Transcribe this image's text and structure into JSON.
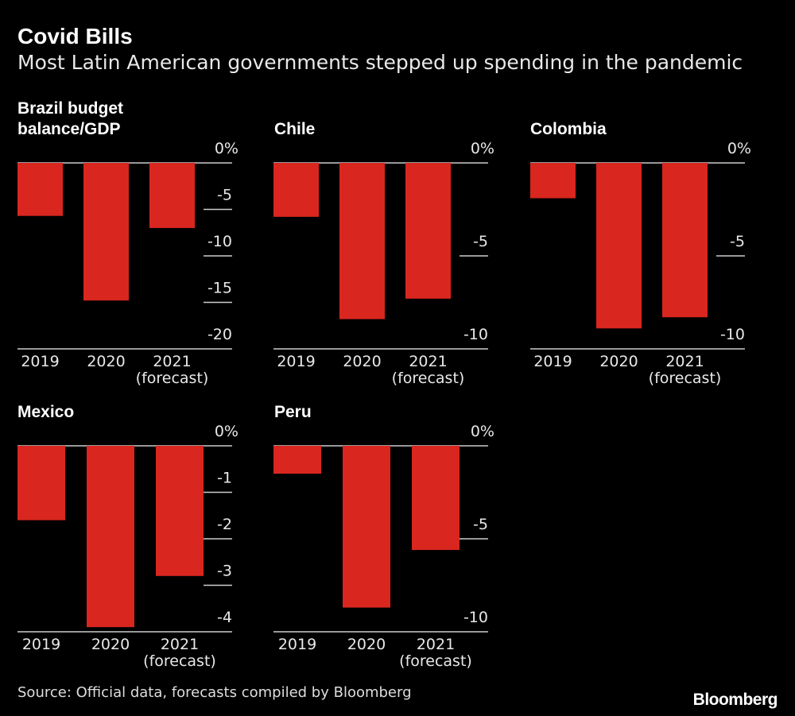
{
  "header": {
    "title": "Covid Bills",
    "subtitle": "Most Latin American governments stepped up spending in the pandemic"
  },
  "footer": {
    "source": "Source: Official data, forecasts compiled by Bloomberg",
    "logo": "Bloomberg"
  },
  "colors": {
    "bar": "#d9261f",
    "background": "#000000",
    "text": "#e8e8e8",
    "axis": "#cccccc"
  },
  "chart_data": [
    {
      "type": "bar",
      "title_lines": [
        "Brazil budget",
        "balance/GDP"
      ],
      "categories": [
        "2019",
        "2020",
        "2021"
      ],
      "category_sublabels": [
        "",
        "",
        "(forecast)"
      ],
      "values": [
        -5.7,
        -14.8,
        -7.0
      ],
      "ylim": [
        -20,
        0
      ],
      "ticks": [
        0,
        -5,
        -10,
        -15,
        -20
      ],
      "tick_labels": [
        "0%",
        "-5",
        "-10",
        "-15",
        "-20"
      ],
      "unit": "%"
    },
    {
      "type": "bar",
      "title_lines": [
        "Chile"
      ],
      "categories": [
        "2019",
        "2020",
        "2021"
      ],
      "category_sublabels": [
        "",
        "",
        "(forecast)"
      ],
      "values": [
        -2.9,
        -8.4,
        -7.3
      ],
      "ylim": [
        -10,
        0
      ],
      "ticks": [
        0,
        -5,
        -10
      ],
      "tick_labels": [
        "0%",
        "-5",
        "-10"
      ],
      "unit": "%"
    },
    {
      "type": "bar",
      "title_lines": [
        "Colombia"
      ],
      "categories": [
        "2019",
        "2020",
        "2021"
      ],
      "category_sublabels": [
        "",
        "",
        "(forecast)"
      ],
      "values": [
        -1.9,
        -8.9,
        -8.3
      ],
      "ylim": [
        -10,
        0
      ],
      "ticks": [
        0,
        -5,
        -10
      ],
      "tick_labels": [
        "0%",
        "-5",
        "-10"
      ],
      "unit": "%"
    },
    {
      "type": "bar",
      "title_lines": [
        "Mexico"
      ],
      "categories": [
        "2019",
        "2020",
        "2021"
      ],
      "category_sublabels": [
        "",
        "",
        "(forecast)"
      ],
      "values": [
        -1.6,
        -3.9,
        -2.8
      ],
      "ylim": [
        -4,
        0
      ],
      "ticks": [
        0,
        -1,
        -2,
        -3,
        -4
      ],
      "tick_labels": [
        "0%",
        "-1",
        "-2",
        "-3",
        "-4"
      ],
      "unit": "%"
    },
    {
      "type": "bar",
      "title_lines": [
        "Peru"
      ],
      "categories": [
        "2019",
        "2020",
        "2021"
      ],
      "category_sublabels": [
        "",
        "",
        "(forecast)"
      ],
      "values": [
        -1.5,
        -8.7,
        -5.6
      ],
      "ylim": [
        -10,
        0
      ],
      "ticks": [
        0,
        -5,
        -10
      ],
      "tick_labels": [
        "0%",
        "-5",
        "-10"
      ],
      "unit": "%"
    }
  ]
}
